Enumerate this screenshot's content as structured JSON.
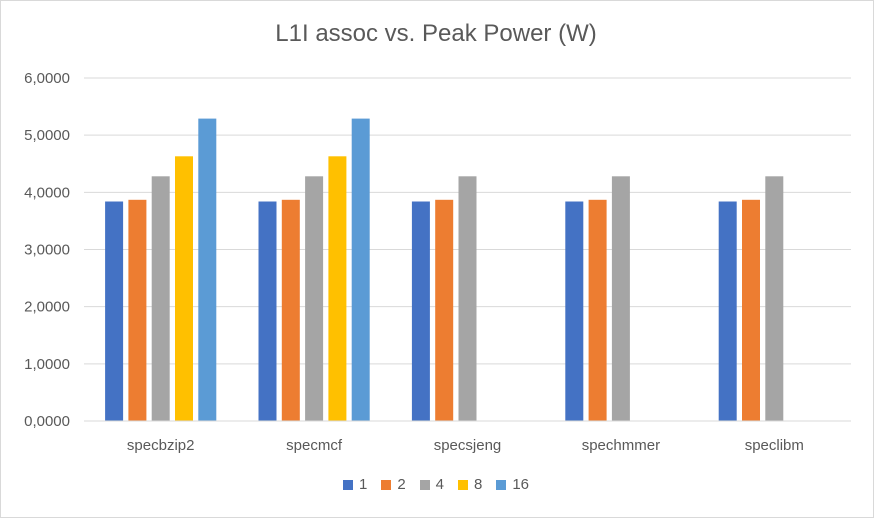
{
  "chart_data": {
    "type": "bar",
    "title": "L1I assoc vs. Peak Power (W)",
    "xlabel": "",
    "ylabel": "",
    "categories": [
      "specbzip2",
      "specmcf",
      "specsjeng",
      "spechmmer",
      "speclibm"
    ],
    "ylim": [
      0,
      6
    ],
    "yticks": [
      "0,0000",
      "1,0000",
      "2,0000",
      "3,0000",
      "4,0000",
      "5,0000",
      "6,0000"
    ],
    "grid": true,
    "legend_position": "bottom",
    "series": [
      {
        "name": "1",
        "color": "#4472C4",
        "values": [
          3.84,
          3.84,
          3.84,
          3.84,
          3.84
        ]
      },
      {
        "name": "2",
        "color": "#ED7D31",
        "values": [
          3.87,
          3.87,
          3.87,
          3.87,
          3.87
        ]
      },
      {
        "name": "4",
        "color": "#A5A5A5",
        "values": [
          4.28,
          4.28,
          4.28,
          4.28,
          4.28
        ]
      },
      {
        "name": "8",
        "color": "#FFC000",
        "values": [
          4.63,
          4.63,
          null,
          null,
          null
        ]
      },
      {
        "name": "16",
        "color": "#5B9BD5",
        "values": [
          5.29,
          5.29,
          null,
          null,
          null
        ]
      }
    ]
  }
}
